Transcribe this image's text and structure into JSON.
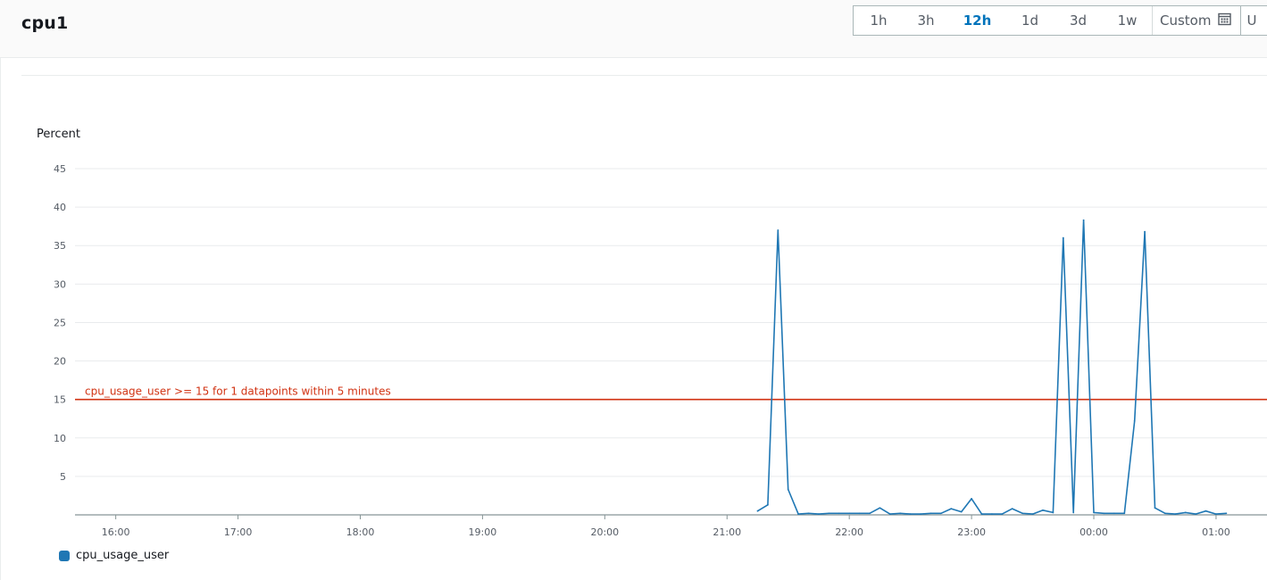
{
  "header": {
    "title": "cpu1",
    "ranges": [
      {
        "label": "1h",
        "active": false
      },
      {
        "label": "3h",
        "active": false
      },
      {
        "label": "12h",
        "active": true
      },
      {
        "label": "1d",
        "active": false
      },
      {
        "label": "3d",
        "active": false
      },
      {
        "label": "1w",
        "active": false
      }
    ],
    "custom_label": "Custom",
    "extra_label": "U"
  },
  "colors": {
    "series": "#1f77b4",
    "threshold": "#d13212",
    "grid": "#e9ebed",
    "axis": "#545b64",
    "active_range": "#0073bb"
  },
  "chart_data": {
    "type": "line",
    "ylabel": "Percent",
    "ylim": [
      0,
      45
    ],
    "yticks": [
      5,
      10,
      15,
      20,
      25,
      30,
      35,
      40,
      45
    ],
    "xticks": [
      "16:00",
      "17:00",
      "18:00",
      "19:00",
      "20:00",
      "21:00",
      "22:00",
      "23:00",
      "00:00",
      "01:00"
    ],
    "x_start": "15:40",
    "x_end": "01:25",
    "grid": true,
    "legend_position": "bottom-left",
    "threshold": {
      "value": 15,
      "label": "cpu_usage_user >= 15 for 1 datapoints within 5 minutes"
    },
    "series": [
      {
        "name": "cpu_usage_user",
        "points": [
          [
            "21:15",
            0.5
          ],
          [
            "21:20",
            1.3
          ],
          [
            "21:25",
            37.0
          ],
          [
            "21:30",
            3.3
          ],
          [
            "21:35",
            0.1
          ],
          [
            "21:40",
            0.2
          ],
          [
            "21:45",
            0.1
          ],
          [
            "21:50",
            0.2
          ],
          [
            "21:55",
            0.2
          ],
          [
            "22:00",
            0.2
          ],
          [
            "22:05",
            0.2
          ],
          [
            "22:10",
            0.2
          ],
          [
            "22:15",
            0.9
          ],
          [
            "22:20",
            0.1
          ],
          [
            "22:25",
            0.2
          ],
          [
            "22:30",
            0.1
          ],
          [
            "22:35",
            0.1
          ],
          [
            "22:40",
            0.2
          ],
          [
            "22:45",
            0.2
          ],
          [
            "22:50",
            0.8
          ],
          [
            "22:55",
            0.4
          ],
          [
            "23:00",
            2.1
          ],
          [
            "23:05",
            0.1
          ],
          [
            "23:10",
            0.1
          ],
          [
            "23:15",
            0.1
          ],
          [
            "23:20",
            0.8
          ],
          [
            "23:25",
            0.2
          ],
          [
            "23:30",
            0.1
          ],
          [
            "23:35",
            0.6
          ],
          [
            "23:40",
            0.3
          ],
          [
            "23:45",
            36.0
          ],
          [
            "23:50",
            0.3
          ],
          [
            "23:55",
            38.3
          ],
          [
            "00:00",
            0.3
          ],
          [
            "00:05",
            0.2
          ],
          [
            "00:10",
            0.2
          ],
          [
            "00:15",
            0.2
          ],
          [
            "00:20",
            12.2
          ],
          [
            "00:25",
            36.8
          ],
          [
            "00:30",
            0.9
          ],
          [
            "00:35",
            0.2
          ],
          [
            "00:40",
            0.1
          ],
          [
            "00:45",
            0.3
          ],
          [
            "00:50",
            0.1
          ],
          [
            "00:55",
            0.5
          ],
          [
            "01:00",
            0.1
          ],
          [
            "01:05",
            0.2
          ]
        ]
      }
    ]
  }
}
